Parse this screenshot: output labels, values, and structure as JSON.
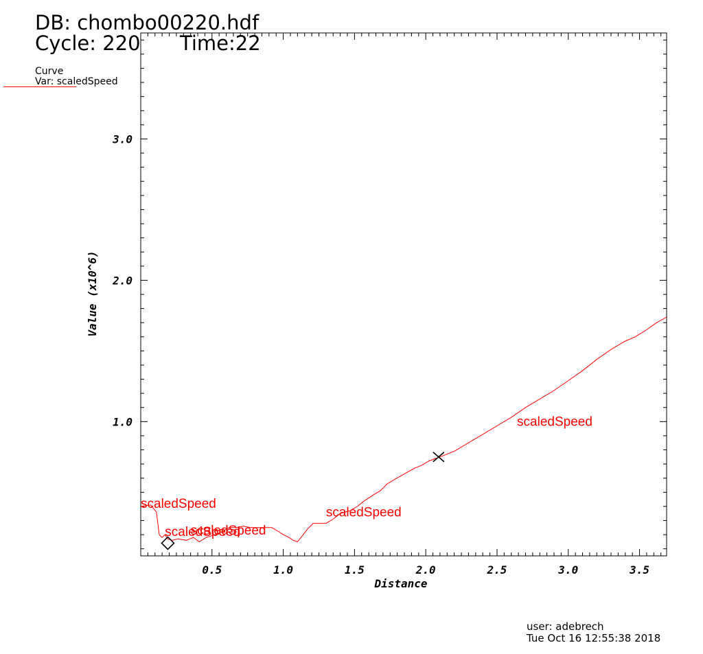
{
  "header": {
    "db": "DB: chombo00220.hdf",
    "cycle": "Cycle: 220",
    "time": "Time:22"
  },
  "legend": {
    "title": "Curve",
    "var": "Var: scaledSpeed",
    "color": "#ff0000"
  },
  "footer": {
    "user": "user: adebrech",
    "date": "Tue Oct 16 12:55:38 2018"
  },
  "chart_data": {
    "type": "line",
    "xlabel": "Distance",
    "ylabel": "Value (x10^6)",
    "xlim": [
      0.0,
      3.69
    ],
    "ylim": [
      0.05,
      3.75
    ],
    "x_ticks": [
      0.5,
      1.0,
      1.5,
      2.0,
      2.5,
      3.0,
      3.5
    ],
    "x_tick_labels": [
      "0.5",
      "1.0",
      "1.5",
      "2.0",
      "2.5",
      "3.0",
      "3.5"
    ],
    "y_ticks": [
      1.0,
      2.0,
      3.0
    ],
    "y_tick_labels": [
      "1.0",
      "2.0",
      "3.0"
    ],
    "grid": false,
    "series": [
      {
        "name": "scaledSpeed",
        "color": "#ff0000",
        "x": [
          0.0,
          0.07,
          0.11,
          0.13,
          0.15,
          0.17,
          0.19,
          0.22,
          0.26,
          0.32,
          0.37,
          0.41,
          0.46,
          0.52,
          0.57,
          0.62,
          0.67,
          0.72,
          0.77,
          0.82,
          0.87,
          0.92,
          0.97,
          1.0,
          1.04,
          1.07,
          1.1,
          1.14,
          1.17,
          1.21,
          1.26,
          1.3,
          1.35,
          1.4,
          1.47,
          1.52,
          1.57,
          1.63,
          1.68,
          1.73,
          1.78,
          1.85,
          1.92,
          1.97,
          2.02,
          2.07,
          2.1,
          2.2,
          2.3,
          2.4,
          2.5,
          2.6,
          2.7,
          2.8,
          2.9,
          3.0,
          3.1,
          3.2,
          3.3,
          3.4,
          3.47,
          3.55,
          3.62,
          3.69
        ],
        "y": [
          0.4,
          0.41,
          0.36,
          0.2,
          0.18,
          0.2,
          0.17,
          0.16,
          0.17,
          0.16,
          0.18,
          0.15,
          0.18,
          0.2,
          0.22,
          0.25,
          0.25,
          0.26,
          0.25,
          0.25,
          0.25,
          0.25,
          0.22,
          0.2,
          0.18,
          0.16,
          0.15,
          0.2,
          0.24,
          0.28,
          0.28,
          0.28,
          0.31,
          0.35,
          0.37,
          0.4,
          0.44,
          0.48,
          0.51,
          0.56,
          0.59,
          0.63,
          0.67,
          0.69,
          0.72,
          0.74,
          0.75,
          0.79,
          0.85,
          0.91,
          0.97,
          1.03,
          1.1,
          1.16,
          1.22,
          1.29,
          1.36,
          1.44,
          1.51,
          1.57,
          1.6,
          1.65,
          1.7,
          1.74
        ]
      }
    ],
    "annotations": [
      {
        "text": "scaledSpeed",
        "x": 0.0,
        "y": 0.39
      },
      {
        "text": "scaledSpeed",
        "x": 0.17,
        "y": 0.19
      },
      {
        "text": "scaledSpeed",
        "x": 0.35,
        "y": 0.2
      },
      {
        "text": "scaledSpeed",
        "x": 1.3,
        "y": 0.33
      },
      {
        "text": "scaledSpeed",
        "x": 2.64,
        "y": 0.97
      }
    ],
    "markers": [
      {
        "symbol": "diamond",
        "x": 0.19,
        "y": 0.14
      },
      {
        "symbol": "x",
        "x": 2.09,
        "y": 0.75
      }
    ]
  }
}
